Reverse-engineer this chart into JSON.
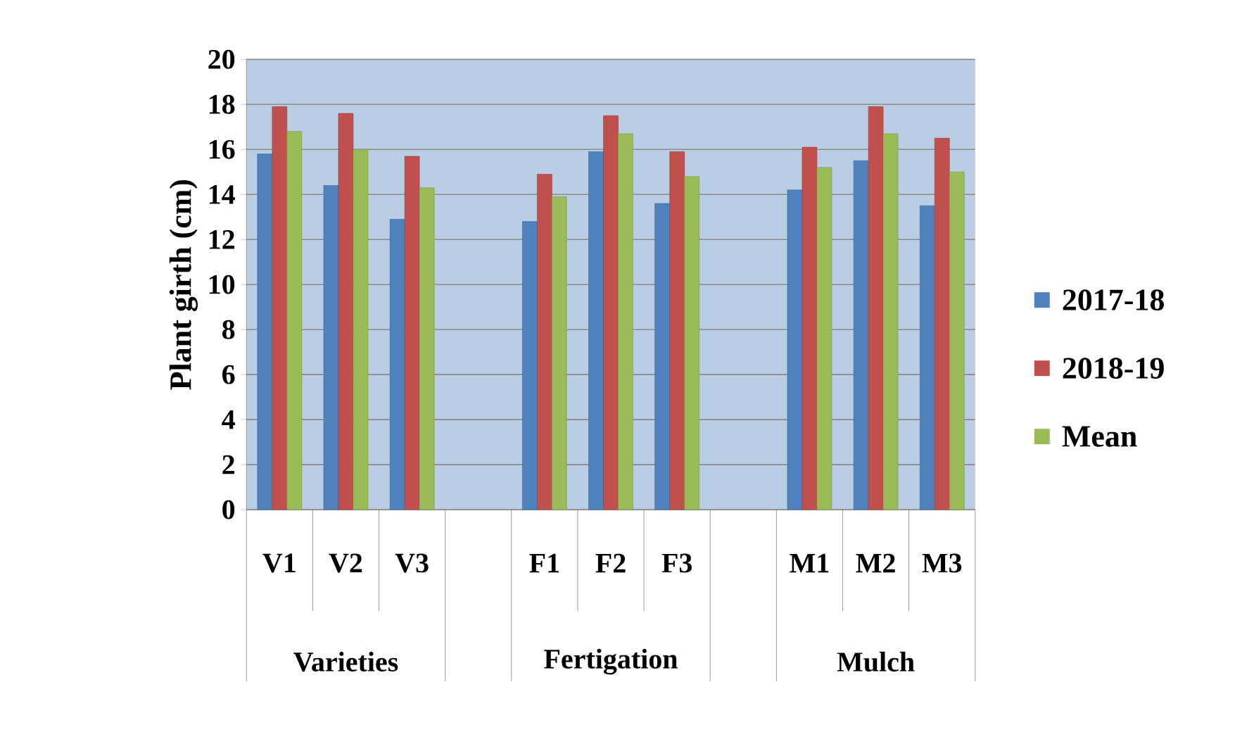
{
  "chart_data": {
    "type": "bar",
    "ylabel": "Plant girth (cm)",
    "categories": [
      "V1",
      "V2",
      "V3",
      null,
      "F1",
      "F2",
      "F3",
      null,
      "M1",
      "M2",
      "M3"
    ],
    "series": [
      {
        "name": "2017-18",
        "color": "#4f81bd",
        "values": [
          15.8,
          14.4,
          12.9,
          null,
          12.8,
          15.9,
          13.6,
          null,
          14.2,
          15.5,
          13.5
        ]
      },
      {
        "name": "2018-19",
        "color": "#c0504d",
        "values": [
          17.9,
          17.6,
          15.7,
          null,
          14.9,
          17.5,
          15.9,
          null,
          16.1,
          17.9,
          16.5
        ]
      },
      {
        "name": "Mean",
        "color": "#9bbb59",
        "values": [
          16.8,
          16.0,
          14.3,
          null,
          13.9,
          16.7,
          14.8,
          null,
          15.2,
          16.7,
          15.0
        ]
      }
    ],
    "annotations": [
      "Varieties",
      "Fertigation",
      "Mulch"
    ],
    "ylim": [
      0,
      20
    ],
    "yticks": [
      0,
      2,
      4,
      6,
      8,
      10,
      12,
      14,
      16,
      18,
      20
    ],
    "grid": "y",
    "legend": "right"
  }
}
